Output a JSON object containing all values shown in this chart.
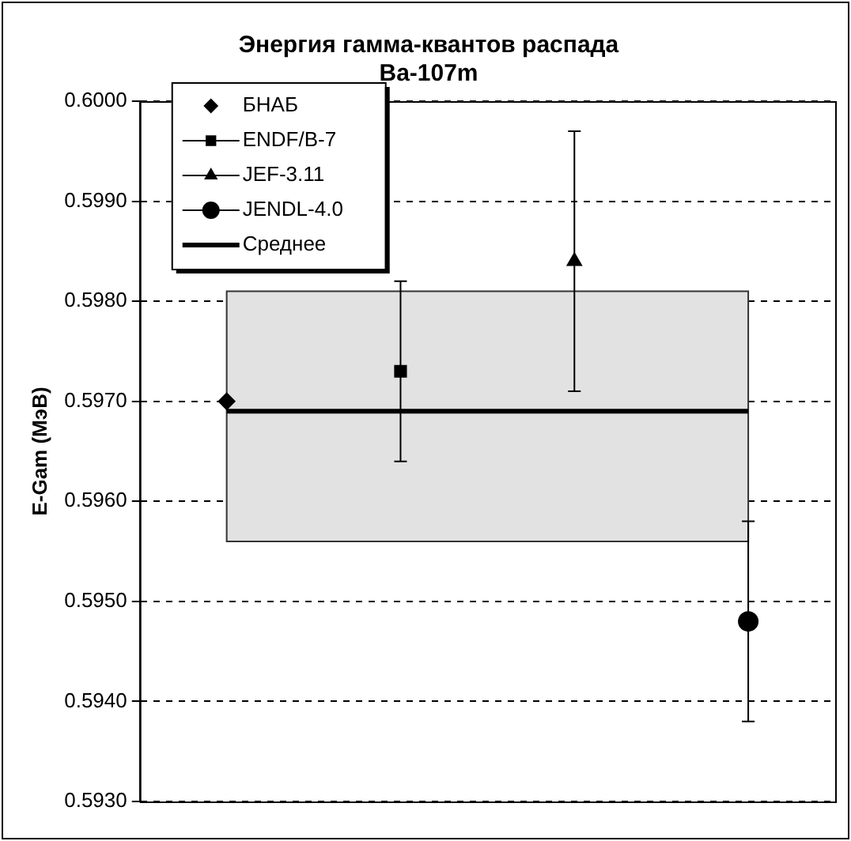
{
  "chart_data": {
    "type": "scatter",
    "title": "Энергия гамма-квантов распада\nBa-107m",
    "ylabel": "E-Gam (МэВ)",
    "categories": [
      null,
      null,
      null,
      null
    ],
    "ylim": [
      0.593,
      0.6
    ],
    "yticks": [
      {
        "value": 0.593,
        "label": "0.5930"
      },
      {
        "value": 0.594,
        "label": "0.5940"
      },
      {
        "value": 0.595,
        "label": "0.5950"
      },
      {
        "value": 0.596,
        "label": "0.5960"
      },
      {
        "value": 0.597,
        "label": "0.5970"
      },
      {
        "value": 0.598,
        "label": "0.5980"
      },
      {
        "value": 0.599,
        "label": "0.5990"
      },
      {
        "value": 0.6,
        "label": "0.6000"
      }
    ],
    "tick_labels": "y",
    "grid": "y",
    "legend": "top left",
    "series": [
      {
        "name": "БНАБ",
        "marker": "diamond",
        "color": "#000000",
        "values": [
          0.597,
          null,
          null,
          null
        ]
      },
      {
        "name": "ENDF/B-7",
        "marker": "square",
        "color": "#000000",
        "values": [
          null,
          0.5973,
          null,
          null
        ],
        "errors": [
          null,
          0.0009,
          null,
          null
        ]
      },
      {
        "name": "JEF-3.11",
        "marker": "triangle",
        "color": "#000000",
        "values": [
          null,
          null,
          0.5984,
          null
        ],
        "errors": [
          null,
          null,
          0.0013,
          null
        ]
      },
      {
        "name": "JENDL-4.0",
        "marker": "circle",
        "color": "#000000",
        "values": [
          null,
          null,
          null,
          0.5948
        ],
        "errors": [
          null,
          null,
          null,
          0.001
        ]
      },
      {
        "name": "Среднее",
        "type": "line",
        "marker": "none",
        "color": "#000000",
        "values": [
          0.5969,
          0.5969,
          0.5969,
          0.5969
        ],
        "lower": [
          0.5956,
          0.5956,
          0.5956,
          0.5956
        ],
        "upper": [
          0.5981,
          0.5981,
          0.5981,
          0.5981
        ]
      }
    ]
  }
}
